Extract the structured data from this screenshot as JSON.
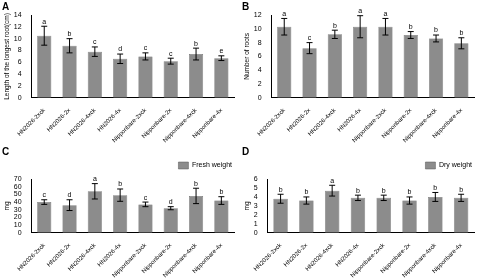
{
  "chart_data": [
    {
      "type": "bar",
      "title": "A",
      "y_label": "Length of the longest root(cm)",
      "categories": [
        "HN2026-2xck",
        "HN2026-2x",
        "HN2026-4xck",
        "HN2026-4x",
        "Nipponbare-2xck",
        "Nipponbare-2x",
        "Nipponbare-4xck",
        "Nipponbare-4x"
      ],
      "values": [
        10.5,
        8.8,
        7.8,
        6.6,
        7.0,
        6.2,
        7.4,
        6.7
      ],
      "errors": [
        1.6,
        1.2,
        0.8,
        0.8,
        0.6,
        0.5,
        1.0,
        0.4
      ],
      "annotations": [
        "a",
        "b",
        "c",
        "d",
        "c",
        "c",
        "b",
        "e"
      ],
      "color": "#8c8c8c",
      "ylim": [
        0,
        14
      ],
      "yticks": [
        0,
        2,
        4,
        6,
        8,
        10,
        12,
        14
      ],
      "grid": false
    },
    {
      "type": "bar",
      "title": "B",
      "y_label": "Number of roots",
      "categories": [
        "HN2026-2xck",
        "HN2026-2x",
        "HN2026-4xck",
        "HN2026-4x",
        "Nipponbare-2xck",
        "Nipponbare-2x",
        "Nipponbare-4xck",
        "Nipponbare-4x"
      ],
      "values": [
        10.3,
        7.2,
        9.2,
        10.3,
        10.3,
        9.1,
        8.6,
        7.9
      ],
      "errors": [
        1.2,
        0.8,
        0.6,
        1.6,
        1.2,
        0.5,
        0.5,
        0.8
      ],
      "annotations": [
        "a",
        "c",
        "b",
        "a",
        "a",
        "b",
        "b",
        "b"
      ],
      "color": "#8c8c8c",
      "ylim": [
        0,
        12
      ],
      "yticks": [
        0,
        2,
        4,
        6,
        8,
        10,
        12
      ],
      "grid": false
    },
    {
      "type": "bar",
      "title": "C",
      "y_label": "mg",
      "categories": [
        "HN2026-2xck",
        "HN2026-2x",
        "HN2026-4xck",
        "HN2026-4x",
        "Nipponbare-2xck",
        "Nipponbare-2x",
        "Nipponbare-4xck",
        "Nipponbare-4x"
      ],
      "series": [
        {
          "name": "Fresh weight",
          "color": "#8c8c8c",
          "values": [
            40,
            36,
            54,
            49,
            37,
            32,
            48,
            42
          ],
          "errors": [
            3,
            7,
            10,
            8,
            3,
            2,
            10,
            5
          ]
        }
      ],
      "annotations": [
        "c",
        "d",
        "a",
        "b",
        "c",
        "d",
        "b",
        "b"
      ],
      "legend": "top-right",
      "ylim": [
        0,
        70
      ],
      "yticks": [
        0,
        10,
        20,
        30,
        40,
        50,
        60,
        70
      ],
      "grid": false
    },
    {
      "type": "bar",
      "title": "D",
      "y_label": "mg",
      "categories": [
        "HN2026-2xck",
        "HN2026-2x",
        "HN2026-4xck",
        "HN2026-4x",
        "Nipponbare-2xck",
        "Nipponbare-2x",
        "Nipponbare-4xck",
        "Nipponbare-4x"
      ],
      "series": [
        {
          "name": "Dry weight",
          "color": "#8c8c8c",
          "values": [
            3.8,
            3.6,
            4.7,
            3.9,
            3.9,
            3.6,
            4.0,
            3.9
          ],
          "errors": [
            0.5,
            0.4,
            0.6,
            0.3,
            0.3,
            0.4,
            0.5,
            0.4
          ]
        }
      ],
      "annotations": [
        "b",
        "b",
        "a",
        "b",
        "b",
        "b",
        "b",
        "b"
      ],
      "legend": "top-right",
      "ylim": [
        0,
        6
      ],
      "yticks": [
        0,
        1,
        2,
        3,
        4,
        5,
        6
      ],
      "grid": false
    }
  ]
}
